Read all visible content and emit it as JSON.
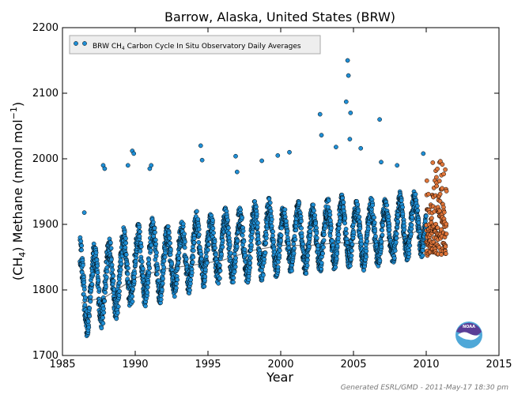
{
  "chart_data": {
    "type": "scatter",
    "title": "Barrow, Alaska, United States (BRW)",
    "xlabel": "Year",
    "ylabel": "(CH",
    "ylabel_sub": "4",
    "ylabel_rest": ") Methane (nmol mol",
    "ylabel_sup": "−1",
    "ylabel_end": ")",
    "xlim": [
      1985,
      2015
    ],
    "ylim": [
      1700,
      2200
    ],
    "xticks": [
      1985,
      1990,
      1995,
      2000,
      2005,
      2010,
      2015
    ],
    "yticks": [
      1700,
      1800,
      1900,
      2000,
      2100,
      2200
    ],
    "legend_position": "top-left",
    "legend": {
      "label_prefix": "BRW CH",
      "label_sub": "4",
      "label_suffix": " Carbon Cycle In Situ Observatory Daily Averages"
    },
    "series": [
      {
        "name": "BRW CH4 Carbon Cycle In Situ Observatory Daily Averages",
        "color": "#1f8fd6",
        "x_range": [
          1986.2,
          2010.0
        ],
        "seasonal_lows": [
          [
            1986.7,
            1730
          ],
          [
            1987.7,
            1742
          ],
          [
            1988.7,
            1756
          ],
          [
            1989.7,
            1772
          ],
          [
            1990.7,
            1775
          ],
          [
            1991.7,
            1780
          ],
          [
            1992.7,
            1790
          ],
          [
            1993.7,
            1795
          ],
          [
            1994.7,
            1805
          ],
          [
            1995.7,
            1810
          ],
          [
            1996.7,
            1812
          ],
          [
            1997.7,
            1808
          ],
          [
            1998.7,
            1815
          ],
          [
            1999.7,
            1820
          ],
          [
            2000.7,
            1828
          ],
          [
            2001.7,
            1825
          ],
          [
            2002.7,
            1828
          ],
          [
            2003.7,
            1832
          ],
          [
            2004.7,
            1835
          ],
          [
            2005.7,
            1830
          ],
          [
            2006.7,
            1835
          ],
          [
            2007.7,
            1838
          ],
          [
            2008.7,
            1845
          ],
          [
            2009.7,
            1850
          ]
        ],
        "seasonal_highs": [
          [
            1986.2,
            1880
          ],
          [
            1987.2,
            1870
          ],
          [
            1988.2,
            1880
          ],
          [
            1989.2,
            1895
          ],
          [
            1990.2,
            1900
          ],
          [
            1991.2,
            1910
          ],
          [
            1992.2,
            1900
          ],
          [
            1993.2,
            1905
          ],
          [
            1994.2,
            1920
          ],
          [
            1995.2,
            1915
          ],
          [
            1996.2,
            1925
          ],
          [
            1997.2,
            1925
          ],
          [
            1998.2,
            1935
          ],
          [
            1999.2,
            1940
          ],
          [
            2000.2,
            1930
          ],
          [
            2001.2,
            1935
          ],
          [
            2002.2,
            1930
          ],
          [
            2003.2,
            1940
          ],
          [
            2004.2,
            1945
          ],
          [
            2005.2,
            1935
          ],
          [
            2006.2,
            1940
          ],
          [
            2007.2,
            1940
          ],
          [
            2008.2,
            1950
          ],
          [
            2009.2,
            1950
          ]
        ],
        "outliers": [
          [
            1986.5,
            1918
          ],
          [
            1987.8,
            1990
          ],
          [
            1987.9,
            1985
          ],
          [
            1989.5,
            1990
          ],
          [
            1989.8,
            2012
          ],
          [
            1989.9,
            2008
          ],
          [
            1991.0,
            1985
          ],
          [
            1991.1,
            1990
          ],
          [
            1994.5,
            2020
          ],
          [
            1994.6,
            1998
          ],
          [
            1996.9,
            2004
          ],
          [
            1997.0,
            1980
          ],
          [
            1998.7,
            1997
          ],
          [
            1999.8,
            2005
          ],
          [
            2000.6,
            2010
          ],
          [
            2002.7,
            2068
          ],
          [
            2002.8,
            2036
          ],
          [
            2003.8,
            2018
          ],
          [
            2004.5,
            2087
          ],
          [
            2004.6,
            2150
          ],
          [
            2004.65,
            2127
          ],
          [
            2004.8,
            2070
          ],
          [
            2004.75,
            2030
          ],
          [
            2005.5,
            2016
          ],
          [
            2006.8,
            2060
          ],
          [
            2006.9,
            1995
          ],
          [
            2008.0,
            1990
          ],
          [
            2009.8,
            2008
          ]
        ]
      },
      {
        "name": "",
        "color": "#e0763a",
        "x_range": [
          2010.0,
          2011.4
        ],
        "values_range": [
          1852,
          2008
        ]
      }
    ],
    "trend_line": {
      "color": "#808080",
      "points": [
        [
          1986.3,
          1780
        ],
        [
          1988.0,
          1790
        ],
        [
          1990.0,
          1818
        ],
        [
          1992.0,
          1832
        ],
        [
          1994.0,
          1838
        ],
        [
          1996.0,
          1845
        ],
        [
          1998.0,
          1860
        ],
        [
          2000.0,
          1868
        ],
        [
          2002.0,
          1868
        ],
        [
          2004.0,
          1872
        ],
        [
          2006.0,
          1870
        ],
        [
          2008.0,
          1878
        ],
        [
          2010.0,
          1895
        ]
      ]
    }
  },
  "footer": "Generated ESRL/GMD - 2011-May-17 18:30 pm",
  "logo_text": "NOAA"
}
